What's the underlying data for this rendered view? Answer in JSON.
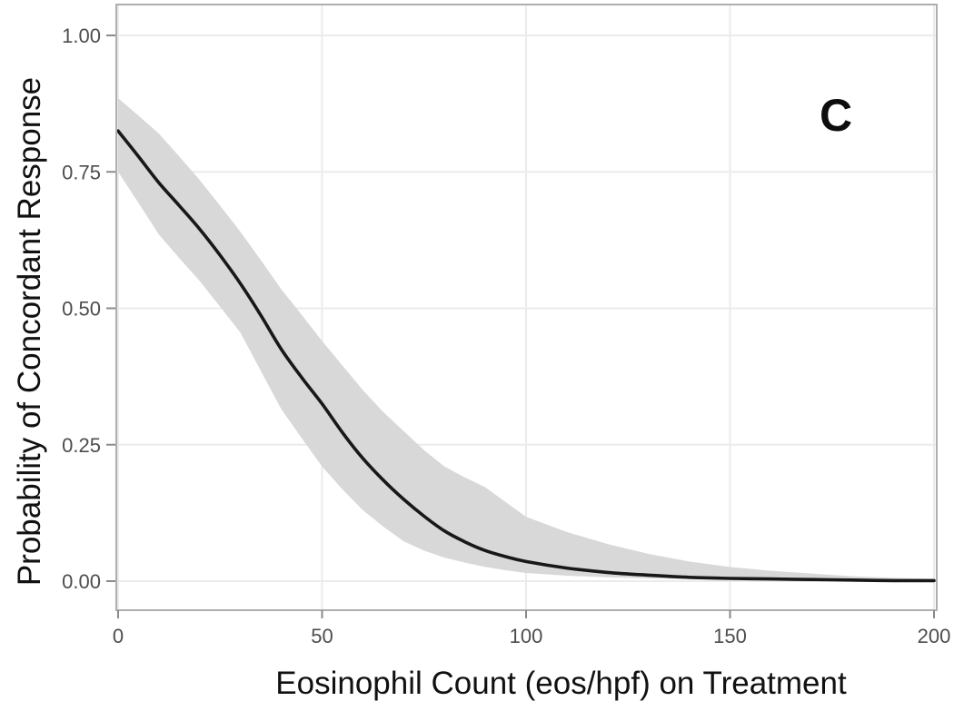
{
  "panel_label": "C",
  "colors": {
    "background": "#ffffff",
    "confidence_band": "#d8d8d8",
    "curve": "#181818",
    "gridline": "#ebebeb",
    "plot_border": "#aeaeae",
    "tick_mark": "#8a8a8a",
    "tick_label": "#4d4d4d",
    "axis_title": "#111111"
  },
  "chart_data": {
    "type": "line",
    "title": "",
    "xlabel": "Eosinophil Count (eos/hpf) on Treatment",
    "ylabel": "Probability of Concordant Response",
    "panel_annotation": "C",
    "xlim": [
      0,
      200
    ],
    "ylim": [
      0,
      1
    ],
    "grid": true,
    "legend": "none",
    "x_tick_values": [
      0,
      50,
      100,
      150,
      200
    ],
    "x_tick_labels": [
      "0",
      "50",
      "100",
      "150",
      "200"
    ],
    "y_tick_values": [
      0,
      0.25,
      0.5,
      0.75,
      1.0
    ],
    "y_tick_labels": [
      "0.00",
      "0.25",
      "0.50",
      "0.75",
      "1.00"
    ],
    "x": [
      0,
      5,
      10,
      15,
      20,
      25,
      30,
      35,
      40,
      45,
      50,
      55,
      60,
      65,
      70,
      75,
      80,
      85,
      90,
      95,
      100,
      110,
      120,
      130,
      140,
      150,
      160,
      170,
      180,
      190,
      200
    ],
    "series": [
      {
        "name": "predicted_probability",
        "values": [
          0.825,
          0.778,
          0.73,
          0.688,
          0.645,
          0.597,
          0.545,
          0.487,
          0.425,
          0.373,
          0.325,
          0.272,
          0.225,
          0.185,
          0.15,
          0.119,
          0.092,
          0.072,
          0.056,
          0.045,
          0.036,
          0.024,
          0.016,
          0.011,
          0.007,
          0.005,
          0.004,
          0.003,
          0.002,
          0.001,
          0.001
        ]
      },
      {
        "name": "ci_lower",
        "values": [
          0.75,
          0.693,
          0.635,
          0.592,
          0.55,
          0.503,
          0.455,
          0.385,
          0.315,
          0.262,
          0.21,
          0.168,
          0.13,
          0.1,
          0.073,
          0.056,
          0.043,
          0.034,
          0.026,
          0.02,
          0.015,
          0.01,
          0.007,
          0.005,
          0.004,
          0.003,
          0.002,
          0.002,
          0.001,
          0.001,
          0.0
        ]
      },
      {
        "name": "ci_upper",
        "values": [
          0.885,
          0.853,
          0.82,
          0.778,
          0.735,
          0.688,
          0.64,
          0.588,
          0.535,
          0.488,
          0.44,
          0.395,
          0.35,
          0.31,
          0.275,
          0.24,
          0.21,
          0.19,
          0.172,
          0.145,
          0.118,
          0.09,
          0.068,
          0.05,
          0.036,
          0.026,
          0.019,
          0.014,
          0.009,
          0.006,
          0.004
        ]
      }
    ],
    "key_points": {
      "probability_at_x0": 0.825,
      "x_at_probability_0_75": 8,
      "x_at_probability_0_50": 33,
      "x_at_probability_0_25": 56
    }
  }
}
